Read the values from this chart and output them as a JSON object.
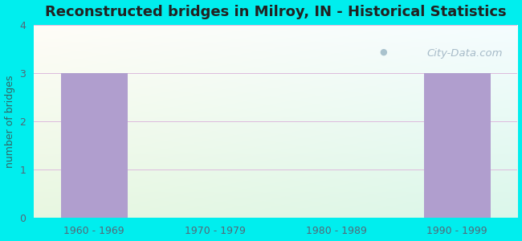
{
  "title": "Reconstructed bridges in Milroy, IN - Historical Statistics",
  "categories": [
    "1960 - 1969",
    "1970 - 1979",
    "1980 - 1989",
    "1990 - 1999"
  ],
  "values": [
    3,
    0,
    0,
    3
  ],
  "bar_color": "#b09ece",
  "ylabel": "number of bridges",
  "ylim": [
    0,
    4
  ],
  "yticks": [
    0,
    1,
    2,
    3,
    4
  ],
  "background_outer": "#00eeee",
  "title_fontsize": 13,
  "title_color": "#222222",
  "axis_label_color": "#336666",
  "tick_color": "#556677",
  "grid_color": "#ddccdd",
  "watermark_text": "City-Data.com",
  "watermark_color": "#aabbcc",
  "bg_top_left": "#f0fdf8",
  "bg_bottom_right": "#e0f5e0",
  "bg_top_right": "#e8f8ff"
}
